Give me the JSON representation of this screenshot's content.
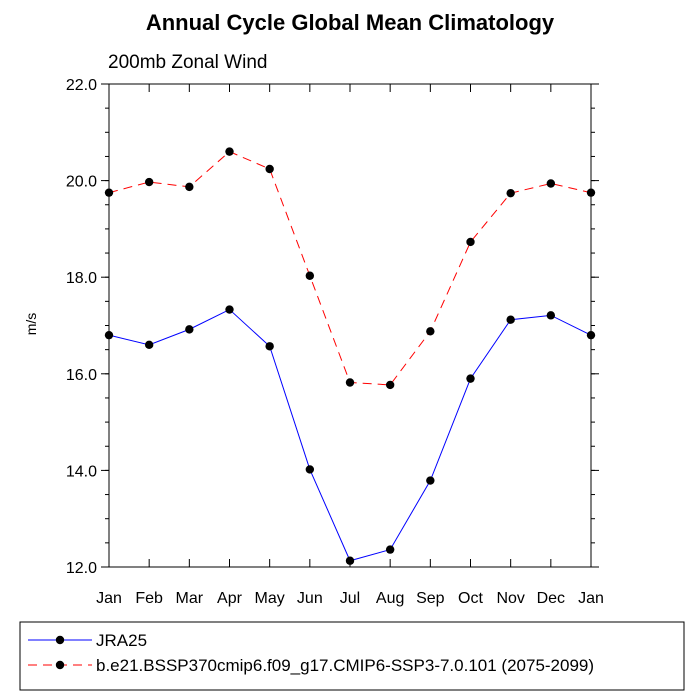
{
  "chart_data": {
    "type": "line",
    "title": "Annual Cycle Global Mean Climatology",
    "subtitle": "200mb Zonal Wind",
    "xlabel": "",
    "ylabel": "m/s",
    "categories": [
      "Jan",
      "Feb",
      "Mar",
      "Apr",
      "May",
      "Jun",
      "Jul",
      "Aug",
      "Sep",
      "Oct",
      "Nov",
      "Dec",
      "Jan"
    ],
    "ylim": [
      12.0,
      22.0
    ],
    "yticks": [
      "12.0",
      "14.0",
      "16.0",
      "18.0",
      "20.0",
      "22.0"
    ],
    "grid": false,
    "legend_position": "bottom",
    "series": [
      {
        "name": "JRA25",
        "color": "#0000ff",
        "style": "solid",
        "values": [
          16.8,
          16.6,
          16.92,
          17.33,
          16.57,
          14.02,
          12.13,
          12.36,
          13.79,
          15.9,
          17.12,
          17.21,
          16.8
        ]
      },
      {
        "name": "b.e21.BSSP370cmip6.f09_g17.CMIP6-SSP3-7.0.101 (2075-2099)",
        "color": "#ff0000",
        "style": "dashed",
        "values": [
          19.75,
          19.97,
          19.87,
          20.6,
          20.24,
          18.03,
          15.82,
          15.77,
          16.88,
          18.73,
          19.74,
          19.94,
          19.75
        ]
      }
    ]
  }
}
